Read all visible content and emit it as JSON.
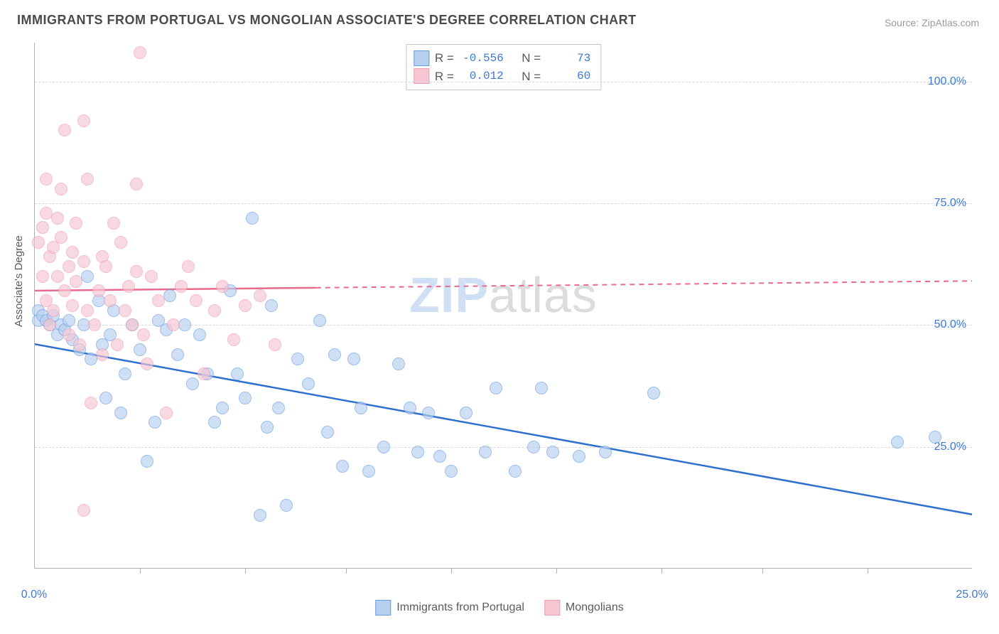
{
  "title": "IMMIGRANTS FROM PORTUGAL VS MONGOLIAN ASSOCIATE'S DEGREE CORRELATION CHART",
  "source": "Source: ZipAtlas.com",
  "watermark_a": "ZIP",
  "watermark_b": "atlas",
  "ylabel": "Associate's Degree",
  "chart": {
    "type": "scatter",
    "background_color": "#ffffff",
    "grid_color": "#d8d8d8",
    "axis_color": "#b0b0b0",
    "tick_color": "#3b78d8",
    "xlim": [
      0,
      25
    ],
    "ylim": [
      0,
      108
    ],
    "xticks": [
      0,
      25
    ],
    "xtick_labels": [
      "0.0%",
      "25.0%"
    ],
    "yticks": [
      25,
      50,
      75,
      100
    ],
    "ytick_labels": [
      "25.0%",
      "50.0%",
      "75.0%",
      "100.0%"
    ],
    "xminor_ticks": [
      2.8,
      5.6,
      8.3,
      11.1,
      13.9,
      16.7,
      19.4,
      22.2
    ],
    "marker_radius": 9,
    "marker_opacity": 0.65
  },
  "series": [
    {
      "name": "Immigrants from Portugal",
      "fill": "#b6cff0",
      "stroke": "#6a9de0",
      "line_color": "#2f6fd0",
      "R": "-0.556",
      "N": "73",
      "trend": {
        "x1": 0,
        "y1": 46,
        "x2": 25,
        "y2": 11,
        "dash_from_x": null
      },
      "points": [
        [
          0.1,
          53
        ],
        [
          0.1,
          51
        ],
        [
          0.2,
          52
        ],
        [
          0.3,
          51
        ],
        [
          0.4,
          50
        ],
        [
          0.5,
          52
        ],
        [
          0.6,
          48
        ],
        [
          0.7,
          50
        ],
        [
          0.8,
          49
        ],
        [
          0.9,
          51
        ],
        [
          1.0,
          47
        ],
        [
          1.2,
          45
        ],
        [
          1.3,
          50
        ],
        [
          1.4,
          60
        ],
        [
          1.5,
          43
        ],
        [
          1.7,
          55
        ],
        [
          1.8,
          46
        ],
        [
          1.9,
          35
        ],
        [
          2.0,
          48
        ],
        [
          2.1,
          53
        ],
        [
          2.3,
          32
        ],
        [
          2.4,
          40
        ],
        [
          2.6,
          50
        ],
        [
          2.8,
          45
        ],
        [
          3.0,
          22
        ],
        [
          3.2,
          30
        ],
        [
          3.3,
          51
        ],
        [
          3.5,
          49
        ],
        [
          3.6,
          56
        ],
        [
          3.8,
          44
        ],
        [
          4.0,
          50
        ],
        [
          4.2,
          38
        ],
        [
          4.4,
          48
        ],
        [
          4.6,
          40
        ],
        [
          4.8,
          30
        ],
        [
          5.0,
          33
        ],
        [
          5.2,
          57
        ],
        [
          5.4,
          40
        ],
        [
          5.6,
          35
        ],
        [
          5.8,
          72
        ],
        [
          6.0,
          11
        ],
        [
          6.2,
          29
        ],
        [
          6.3,
          54
        ],
        [
          6.5,
          33
        ],
        [
          6.7,
          13
        ],
        [
          7.0,
          43
        ],
        [
          7.3,
          38
        ],
        [
          7.6,
          51
        ],
        [
          7.8,
          28
        ],
        [
          8.0,
          44
        ],
        [
          8.2,
          21
        ],
        [
          8.5,
          43
        ],
        [
          8.7,
          33
        ],
        [
          8.9,
          20
        ],
        [
          9.3,
          25
        ],
        [
          9.7,
          42
        ],
        [
          10.0,
          33
        ],
        [
          10.2,
          24
        ],
        [
          10.5,
          32
        ],
        [
          10.8,
          23
        ],
        [
          11.1,
          20
        ],
        [
          11.5,
          32
        ],
        [
          12.0,
          24
        ],
        [
          12.3,
          37
        ],
        [
          12.8,
          20
        ],
        [
          13.3,
          25
        ],
        [
          13.5,
          37
        ],
        [
          13.8,
          24
        ],
        [
          14.5,
          23
        ],
        [
          15.2,
          24
        ],
        [
          16.5,
          36
        ],
        [
          23.0,
          26
        ],
        [
          24.0,
          27
        ]
      ]
    },
    {
      "name": "Mongolians",
      "fill": "#f6c6d2",
      "stroke": "#ec9db0",
      "line_color": "#e86b8d",
      "R": "0.012",
      "N": "60",
      "trend": {
        "x1": 0,
        "y1": 57,
        "x2": 25,
        "y2": 59,
        "dash_from_x": 7.5
      },
      "points": [
        [
          0.1,
          67
        ],
        [
          0.2,
          60
        ],
        [
          0.2,
          70
        ],
        [
          0.3,
          55
        ],
        [
          0.3,
          73
        ],
        [
          0.3,
          80
        ],
        [
          0.4,
          64
        ],
        [
          0.4,
          50
        ],
        [
          0.5,
          66
        ],
        [
          0.5,
          53
        ],
        [
          0.6,
          72
        ],
        [
          0.6,
          60
        ],
        [
          0.7,
          78
        ],
        [
          0.7,
          68
        ],
        [
          0.8,
          57
        ],
        [
          0.8,
          90
        ],
        [
          0.9,
          62
        ],
        [
          0.9,
          48
        ],
        [
          1.0,
          65
        ],
        [
          1.0,
          54
        ],
        [
          1.1,
          71
        ],
        [
          1.1,
          59
        ],
        [
          1.2,
          46
        ],
        [
          1.3,
          92
        ],
        [
          1.3,
          63
        ],
        [
          1.4,
          80
        ],
        [
          1.4,
          53
        ],
        [
          1.5,
          34
        ],
        [
          1.6,
          50
        ],
        [
          1.7,
          57
        ],
        [
          1.8,
          64
        ],
        [
          1.8,
          44
        ],
        [
          1.9,
          62
        ],
        [
          2.0,
          55
        ],
        [
          2.1,
          71
        ],
        [
          2.2,
          46
        ],
        [
          2.3,
          67
        ],
        [
          2.4,
          53
        ],
        [
          2.5,
          58
        ],
        [
          2.6,
          50
        ],
        [
          2.7,
          79
        ],
        [
          2.7,
          61
        ],
        [
          2.8,
          106
        ],
        [
          2.9,
          48
        ],
        [
          3.0,
          42
        ],
        [
          3.1,
          60
        ],
        [
          3.3,
          55
        ],
        [
          3.5,
          32
        ],
        [
          3.7,
          50
        ],
        [
          3.9,
          58
        ],
        [
          4.1,
          62
        ],
        [
          4.3,
          55
        ],
        [
          4.5,
          40
        ],
        [
          4.8,
          53
        ],
        [
          5.0,
          58
        ],
        [
          5.3,
          47
        ],
        [
          5.6,
          54
        ],
        [
          6.0,
          56
        ],
        [
          6.4,
          46
        ],
        [
          1.3,
          12
        ]
      ]
    }
  ],
  "legend_top": {
    "R_label": "R =",
    "N_label": "N ="
  },
  "legend_bottom_labels": [
    "Immigrants from Portugal",
    "Mongolians"
  ]
}
